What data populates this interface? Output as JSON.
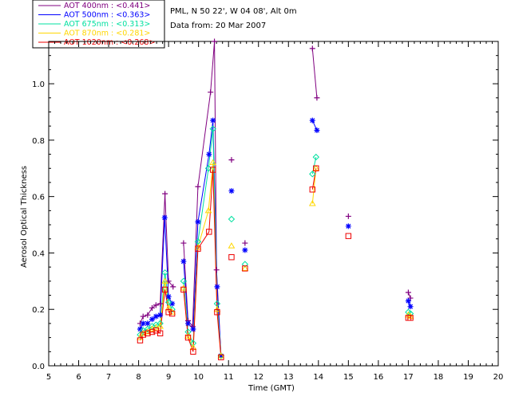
{
  "info": {
    "site": "PML, N 50 22', W 04 08', Alt 0m",
    "date": "Data from: 20 Mar 2007"
  },
  "chart_data": {
    "type": "scatter",
    "xlabel": "Time (GMT)",
    "ylabel": "Aerosol Optical Thickness",
    "xlim": [
      5,
      20
    ],
    "ylim": [
      0.0,
      1.15
    ],
    "xticks": [
      5,
      6,
      7,
      8,
      9,
      10,
      11,
      12,
      13,
      14,
      15,
      16,
      17,
      18,
      19,
      20
    ],
    "yticks": [
      0.0,
      0.2,
      0.4,
      0.6,
      0.8,
      1.0
    ],
    "ytick_labels": [
      "0.0",
      "0.2",
      "0.4",
      "0.6",
      "0.8",
      "1.0"
    ],
    "legend_position": "top-left outside",
    "series": [
      {
        "name": "AOT  400nm : <0.441>",
        "color": "#800080",
        "marker": "plus",
        "segments": [
          [
            [
              8.05,
              0.15
            ],
            [
              8.15,
              0.175
            ],
            [
              8.3,
              0.18
            ],
            [
              8.45,
              0.205
            ],
            [
              8.58,
              0.215
            ],
            [
              8.72,
              0.22
            ],
            [
              8.88,
              0.61
            ],
            [
              9.0,
              0.3
            ],
            [
              9.15,
              0.28
            ]
          ],
          [
            [
              9.5,
              0.435
            ],
            [
              9.65,
              0.16
            ],
            [
              9.8,
              0.14
            ],
            [
              9.98,
              0.635
            ],
            [
              10.4,
              0.97
            ],
            [
              10.53,
              1.15
            ],
            [
              10.6,
              0.34
            ],
            [
              10.75,
              0.035
            ]
          ],
          [
            [
              13.8,
              1.125
            ],
            [
              13.95,
              0.95
            ]
          ],
          [
            [
              17.0,
              0.26
            ],
            [
              17.07,
              0.24
            ]
          ]
        ],
        "singles": [
          [
            11.1,
            0.73
          ],
          [
            11.55,
            0.435
          ],
          [
            15.0,
            0.53
          ]
        ]
      },
      {
        "name": "AOT  500nm : <0.363>",
        "color": "#0000ff",
        "marker": "asterisk",
        "segments": [
          [
            [
              8.05,
              0.13
            ],
            [
              8.15,
              0.15
            ],
            [
              8.3,
              0.15
            ],
            [
              8.45,
              0.165
            ],
            [
              8.58,
              0.175
            ],
            [
              8.72,
              0.18
            ],
            [
              8.87,
              0.525
            ],
            [
              9.0,
              0.245
            ],
            [
              9.12,
              0.22
            ]
          ],
          [
            [
              9.5,
              0.37
            ],
            [
              9.65,
              0.15
            ],
            [
              9.82,
              0.13
            ],
            [
              9.98,
              0.51
            ],
            [
              10.35,
              0.75
            ],
            [
              10.48,
              0.87
            ],
            [
              10.62,
              0.28
            ],
            [
              10.75,
              0.035
            ]
          ],
          [
            [
              13.8,
              0.87
            ],
            [
              13.95,
              0.835
            ]
          ],
          [
            [
              17.0,
              0.23
            ],
            [
              17.07,
              0.21
            ]
          ]
        ],
        "singles": [
          [
            11.1,
            0.62
          ],
          [
            11.55,
            0.41
          ],
          [
            15.0,
            0.495
          ]
        ]
      },
      {
        "name": "AOT  675nm : <0.313>",
        "color": "#00e0a0",
        "marker": "diamond",
        "segments": [
          [
            [
              8.05,
              0.11
            ],
            [
              8.15,
              0.125
            ],
            [
              8.3,
              0.13
            ],
            [
              8.45,
              0.14
            ],
            [
              8.58,
              0.145
            ],
            [
              8.72,
              0.15
            ],
            [
              8.88,
              0.33
            ],
            [
              9.0,
              0.225
            ],
            [
              9.12,
              0.2
            ]
          ],
          [
            [
              9.5,
              0.3
            ],
            [
              9.65,
              0.12
            ],
            [
              9.82,
              0.08
            ],
            [
              9.98,
              0.44
            ],
            [
              10.33,
              0.7
            ],
            [
              10.48,
              0.84
            ],
            [
              10.62,
              0.22
            ],
            [
              10.75,
              0.035
            ]
          ],
          [
            [
              13.8,
              0.68
            ],
            [
              13.92,
              0.74
            ]
          ],
          [
            [
              17.0,
              0.19
            ],
            [
              17.07,
              0.185
            ]
          ]
        ],
        "singles": [
          [
            11.1,
            0.52
          ],
          [
            11.55,
            0.36
          ]
        ]
      },
      {
        "name": "AOT  870nm : <0.281>",
        "color": "#ffd700",
        "marker": "triangle",
        "segments": [
          [
            [
              8.05,
              0.1
            ],
            [
              8.15,
              0.115
            ],
            [
              8.3,
              0.12
            ],
            [
              8.45,
              0.13
            ],
            [
              8.58,
              0.135
            ],
            [
              8.72,
              0.14
            ],
            [
              8.88,
              0.3
            ],
            [
              9.0,
              0.205
            ],
            [
              9.12,
              0.19
            ]
          ],
          [
            [
              9.5,
              0.275
            ],
            [
              9.65,
              0.105
            ],
            [
              9.82,
              0.065
            ],
            [
              9.98,
              0.42
            ],
            [
              10.33,
              0.55
            ],
            [
              10.48,
              0.72
            ],
            [
              10.62,
              0.2
            ],
            [
              10.75,
              0.035
            ]
          ],
          [
            [
              13.8,
              0.575
            ],
            [
              13.92,
              0.7
            ]
          ],
          [
            [
              17.0,
              0.18
            ],
            [
              17.07,
              0.175
            ]
          ]
        ],
        "singles": [
          [
            11.1,
            0.425
          ],
          [
            11.55,
            0.345
          ]
        ]
      },
      {
        "name": "AOT 1020nm : <0.268>",
        "color": "#ee0000",
        "marker": "square",
        "segments": [
          [
            [
              8.05,
              0.09
            ],
            [
              8.15,
              0.11
            ],
            [
              8.3,
              0.115
            ],
            [
              8.45,
              0.12
            ],
            [
              8.58,
              0.125
            ],
            [
              8.72,
              0.115
            ],
            [
              8.88,
              0.27
            ],
            [
              9.0,
              0.19
            ],
            [
              9.12,
              0.185
            ]
          ],
          [
            [
              9.5,
              0.27
            ],
            [
              9.65,
              0.1
            ],
            [
              9.82,
              0.05
            ],
            [
              9.98,
              0.415
            ],
            [
              10.35,
              0.475
            ],
            [
              10.48,
              0.695
            ],
            [
              10.62,
              0.19
            ],
            [
              10.75,
              0.03
            ]
          ],
          [
            [
              13.8,
              0.625
            ],
            [
              13.92,
              0.7
            ]
          ],
          [
            [
              17.0,
              0.17
            ],
            [
              17.07,
              0.17
            ]
          ]
        ],
        "singles": [
          [
            11.1,
            0.385
          ],
          [
            11.55,
            0.345
          ],
          [
            15.0,
            0.46
          ]
        ]
      }
    ]
  }
}
